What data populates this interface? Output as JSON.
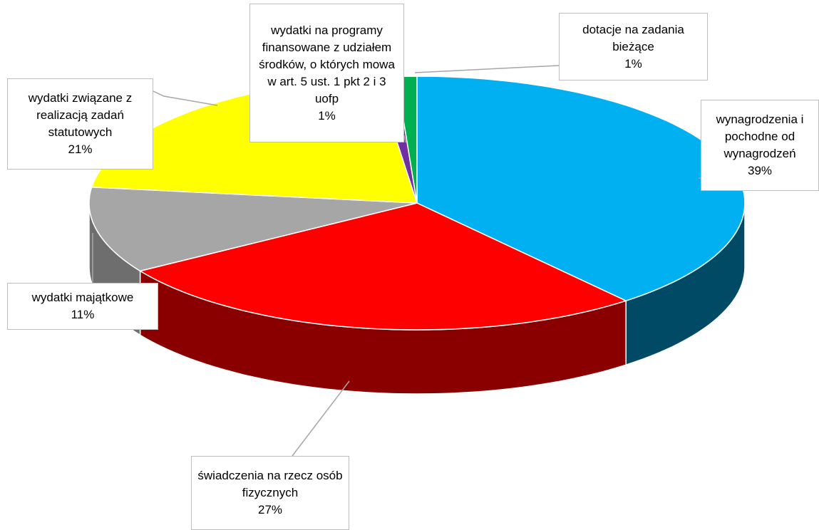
{
  "chart_data": {
    "type": "pie",
    "categories": [
      "wynagrodzenia i pochodne od wynagrodzeń",
      "świadczenia na rzecz osób fizycznych",
      "wydatki majątkowe",
      "wydatki związane z realizacją zadań statutowych",
      "wydatki na programy finansowane z udziałem środków, o których mowa w art. 5 ust. 1 pkt 2 i 3 uofp",
      "dotacje na zadania bieżące"
    ],
    "values": [
      39,
      27,
      11,
      21,
      1,
      1
    ],
    "value_labels": [
      "39%",
      "27%",
      "11%",
      "21%",
      "1%",
      "1%"
    ],
    "colors": [
      "#00b0f0",
      "#ff0000",
      "#a6a6a6",
      "#ffff00",
      "#7030a0",
      "#00b050"
    ],
    "side_colors": [
      "#004a66",
      "#8a0000",
      "#6e6e6e",
      "#a6a600",
      "#3f1b5c",
      "#006630"
    ]
  }
}
